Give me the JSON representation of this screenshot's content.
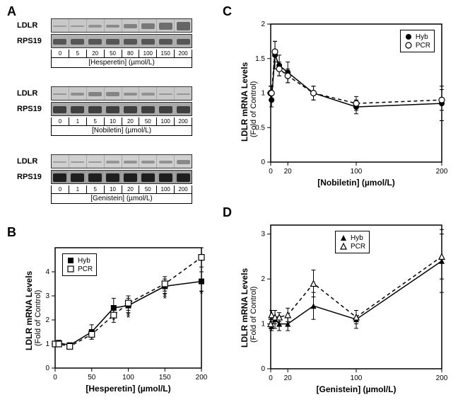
{
  "panelLabels": {
    "A": "A",
    "B": "B",
    "C": "C",
    "D": "D"
  },
  "blots": {
    "hesperetin": {
      "rows": [
        {
          "name": "LDLR",
          "bg": "#c8c8c8",
          "intensities": [
            0.15,
            0.2,
            0.25,
            0.35,
            0.45,
            0.55,
            0.7,
            0.8
          ],
          "bandColor": "#555"
        },
        {
          "name": "RPS19",
          "bg": "#b0b0b0",
          "intensities": [
            0.6,
            0.6,
            0.6,
            0.6,
            0.6,
            0.6,
            0.6,
            0.6
          ],
          "bandColor": "#333"
        }
      ],
      "concs": [
        "0",
        "5",
        "20",
        "50",
        "80",
        "100",
        "150",
        "200"
      ],
      "compound": "[Hesperetin]  (µmol/L)"
    },
    "nobiletin": {
      "rows": [
        {
          "name": "LDLR",
          "bg": "#c8c8c8",
          "intensities": [
            0.2,
            0.3,
            0.45,
            0.4,
            0.3,
            0.25,
            0.2,
            0.2
          ],
          "bandColor": "#555"
        },
        {
          "name": "RPS19",
          "bg": "#a8a8a8",
          "intensities": [
            0.7,
            0.7,
            0.7,
            0.7,
            0.7,
            0.7,
            0.7,
            0.7
          ],
          "bandColor": "#222"
        }
      ],
      "concs": [
        "0",
        "1",
        "5",
        "10",
        "20",
        "50",
        "100",
        "200"
      ],
      "compound": "[Nobiletin]  (µmol/L)"
    },
    "genistein": {
      "rows": [
        {
          "name": "LDLR",
          "bg": "#d0d0d0",
          "intensities": [
            0.15,
            0.2,
            0.2,
            0.25,
            0.3,
            0.3,
            0.3,
            0.4
          ],
          "bandColor": "#555"
        },
        {
          "name": "RPS19",
          "bg": "#9a9a9a",
          "intensities": [
            0.85,
            0.85,
            0.85,
            0.85,
            0.85,
            0.85,
            0.85,
            0.85
          ],
          "bandColor": "#111"
        }
      ],
      "concs": [
        "0",
        "1",
        "5",
        "10",
        "20",
        "50",
        "100",
        "200"
      ],
      "compound": "[Genistein]  (µmol/L)"
    }
  },
  "chartB": {
    "type": "line",
    "title": null,
    "xlabel": "[Hesperetin]  (µmol/L)",
    "ylabel": "LDLR mRNA Levels",
    "ylabel2": "(Fold of Control)",
    "xlim": [
      0,
      200
    ],
    "ylim": [
      0,
      5
    ],
    "xticks": [
      0,
      50,
      100,
      150,
      200
    ],
    "yticks": [
      0,
      1,
      2,
      3,
      4
    ],
    "series": [
      {
        "name": "Hyb",
        "marker": "square-filled",
        "dash": "solid",
        "color": "#000",
        "x": [
          0,
          5,
          20,
          50,
          80,
          100,
          150,
          200
        ],
        "y": [
          1.0,
          1.05,
          0.95,
          1.5,
          2.5,
          2.6,
          3.4,
          3.6
        ],
        "err": [
          0.1,
          0.1,
          0.1,
          0.3,
          0.4,
          0.3,
          0.3,
          0.4
        ],
        "stars": [
          false,
          false,
          false,
          false,
          true,
          true,
          true,
          true
        ]
      },
      {
        "name": "PCR",
        "marker": "square-open",
        "dash": "dashed",
        "color": "#000",
        "x": [
          0,
          5,
          20,
          50,
          80,
          100,
          150,
          200
        ],
        "y": [
          1.0,
          1.0,
          0.9,
          1.4,
          2.2,
          2.7,
          3.5,
          4.6
        ],
        "err": [
          0.1,
          0.1,
          0.1,
          0.2,
          0.3,
          0.3,
          0.3,
          0.4
        ],
        "stars": [
          false,
          false,
          false,
          false,
          false,
          true,
          true,
          false
        ]
      }
    ],
    "legend": {
      "pos": "top-left"
    }
  },
  "chartC": {
    "type": "line",
    "xlabel": "[Nobiletin]  (µmol/L)",
    "ylabel": "LDLR mRNA Levels",
    "ylabel2": "(Fold of Control)",
    "xlim": [
      0,
      200
    ],
    "ylim": [
      0,
      2
    ],
    "xticks": [
      0,
      20,
      100,
      200
    ],
    "yticks": [
      0,
      0.5,
      1,
      1.5,
      2
    ],
    "series": [
      {
        "name": "Hyb",
        "marker": "circle-filled",
        "dash": "solid",
        "color": "#000",
        "x": [
          0,
          1,
          5,
          10,
          20,
          50,
          100,
          200
        ],
        "y": [
          1.0,
          0.9,
          1.55,
          1.4,
          1.3,
          1.0,
          0.8,
          0.85
        ],
        "err": [
          0.1,
          0.1,
          0.2,
          0.15,
          0.15,
          0.1,
          0.1,
          0.25
        ]
      },
      {
        "name": "PCR",
        "marker": "circle-open",
        "dash": "dashed",
        "color": "#000",
        "x": [
          0,
          1,
          5,
          10,
          20,
          50,
          100,
          200
        ],
        "y": [
          1.0,
          1.0,
          1.6,
          1.35,
          1.25,
          1.0,
          0.85,
          0.9
        ],
        "err": [
          0.1,
          0.1,
          0.15,
          0.1,
          0.1,
          0.1,
          0.1,
          0.15
        ]
      }
    ],
    "legend": {
      "pos": "top-right"
    }
  },
  "chartD": {
    "type": "line",
    "xlabel": "[Genistein]  (µmol/L)",
    "ylabel": "LDLR mRNA Levels",
    "ylabel2": "(Fold of Control)",
    "xlim": [
      0,
      200
    ],
    "ylim": [
      0,
      3.2
    ],
    "xticks": [
      0,
      20,
      100,
      200
    ],
    "yticks": [
      0,
      1,
      2,
      3
    ],
    "series": [
      {
        "name": "Hyb",
        "marker": "triangle-filled",
        "dash": "solid",
        "color": "#000",
        "x": [
          0,
          1,
          5,
          10,
          20,
          50,
          100,
          200
        ],
        "y": [
          1.0,
          0.95,
          1.1,
          1.0,
          1.0,
          1.4,
          1.1,
          2.4
        ],
        "err": [
          0.1,
          0.1,
          0.2,
          0.15,
          0.15,
          0.3,
          0.2,
          0.7
        ]
      },
      {
        "name": "PCR",
        "marker": "triangle-open",
        "dash": "dashed",
        "color": "#000",
        "x": [
          0,
          1,
          5,
          10,
          20,
          50,
          100,
          200
        ],
        "y": [
          1.0,
          1.2,
          1.15,
          1.15,
          1.2,
          1.9,
          1.15,
          2.5
        ],
        "err": [
          0.1,
          0.1,
          0.15,
          0.1,
          0.15,
          0.3,
          0.15,
          0.5
        ]
      }
    ],
    "legend": {
      "pos": "top-center"
    }
  },
  "colors": {
    "axis": "#000000",
    "background": "#ffffff"
  }
}
